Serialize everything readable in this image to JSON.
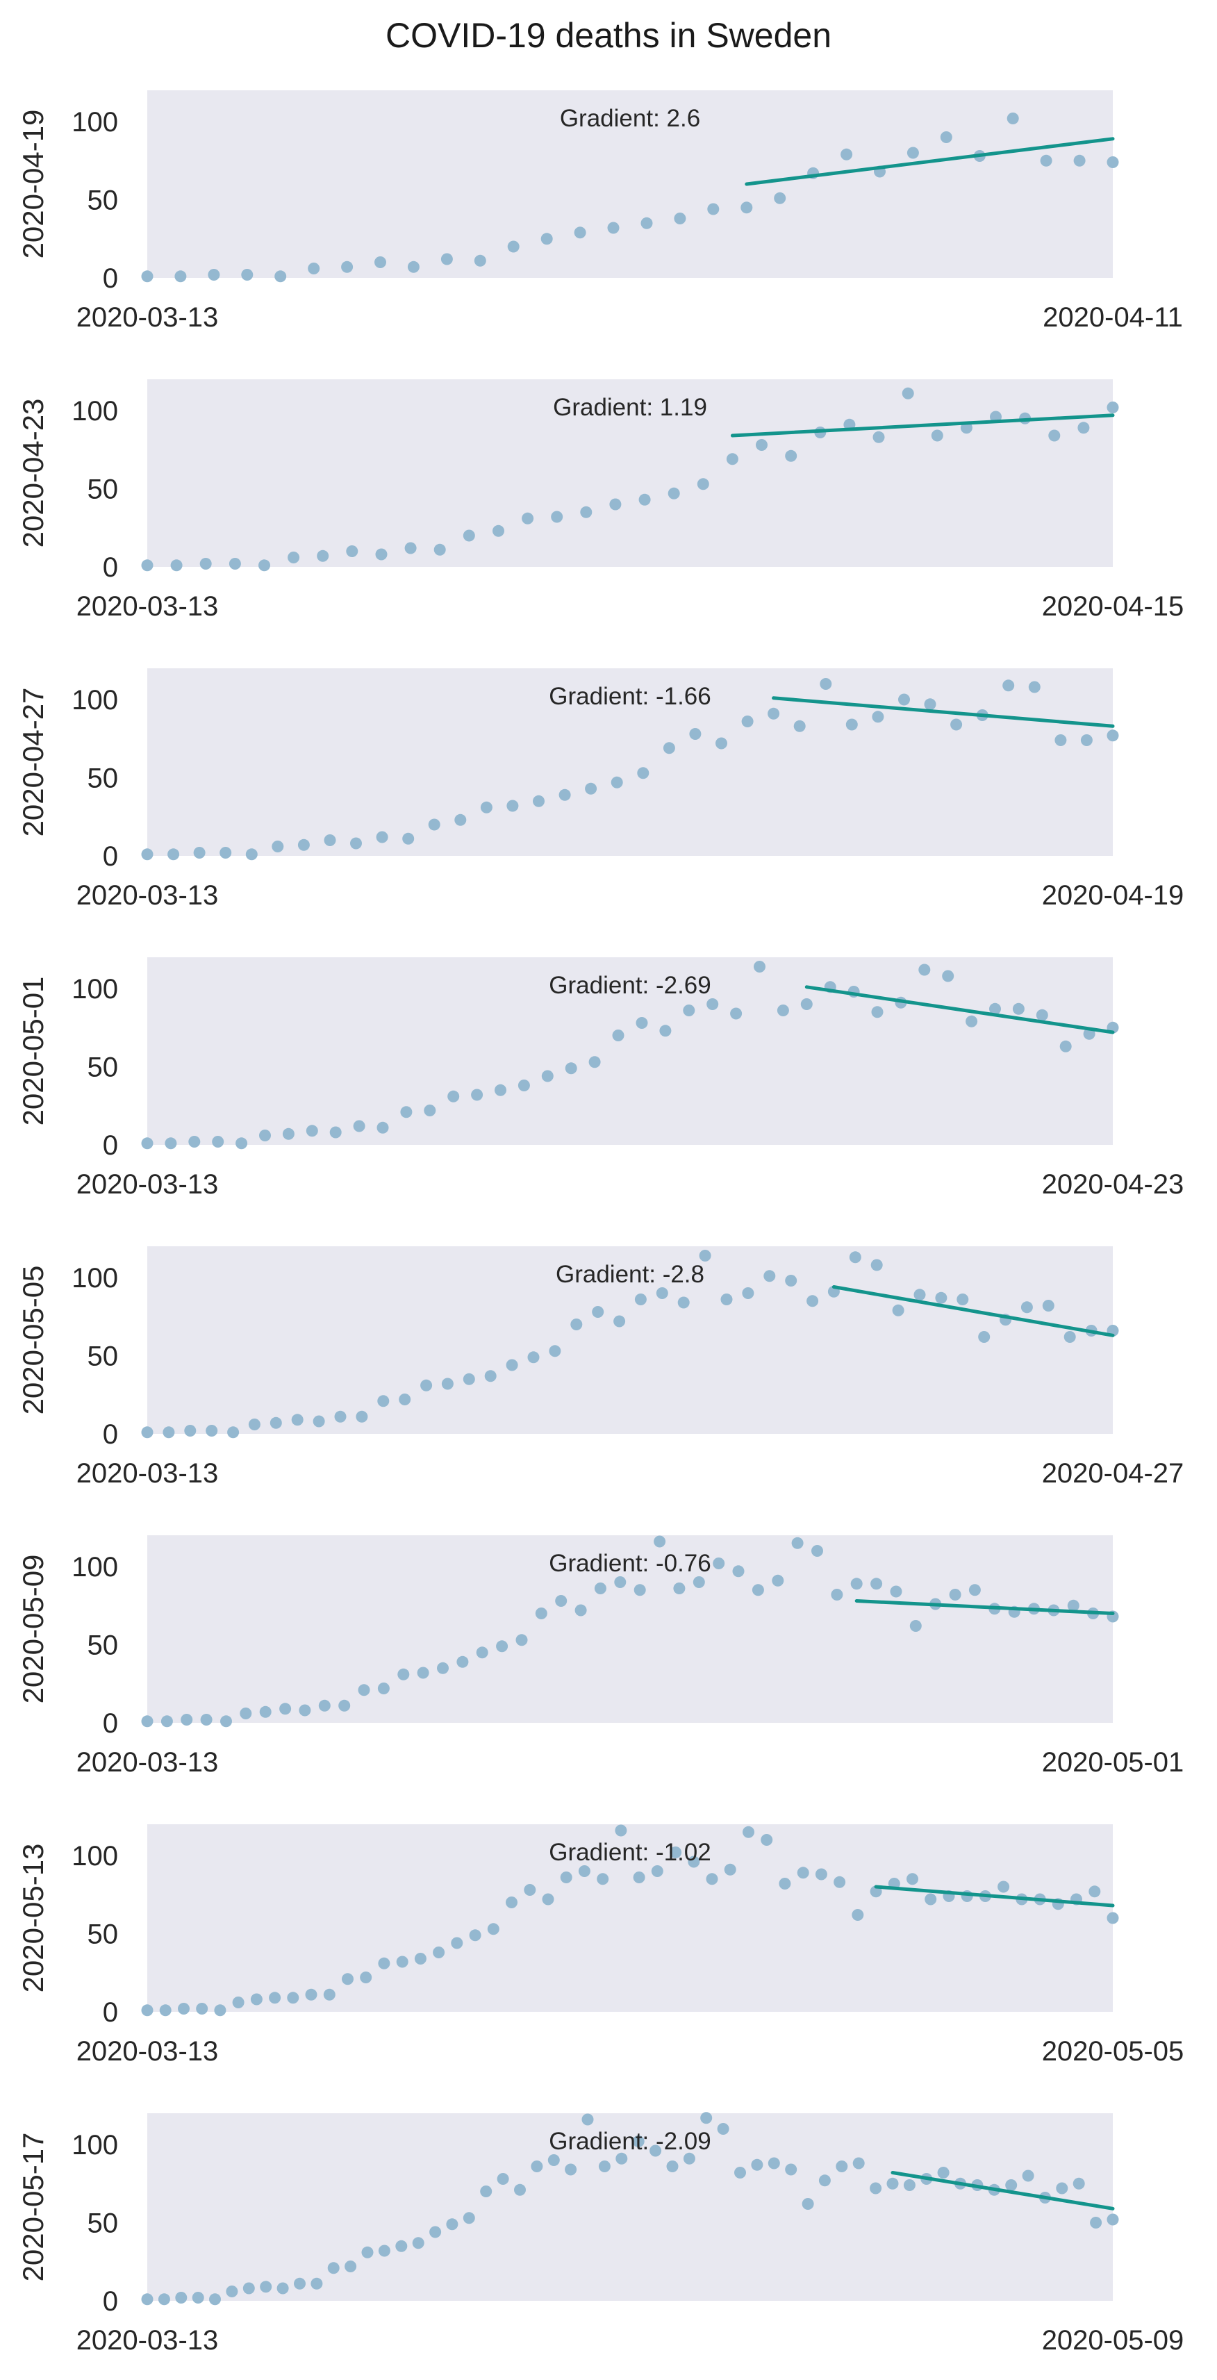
{
  "chart_data": {
    "title": "COVID-19 deaths in Sweden",
    "type": "scatter",
    "colors": {
      "points": "#94b8d0",
      "trend": "#13948c",
      "panel": "#e8e8f0"
    },
    "grid": false,
    "y_ticks": [
      0,
      50,
      100
    ],
    "ylim": [
      0,
      120
    ],
    "panels": [
      {
        "ylabel": "2020-04-19",
        "x_start_label": "2020-03-13",
        "x_end_label": "2020-04-11",
        "gradient_label": "Gradient: 2.6",
        "values": [
          1,
          1,
          2,
          2,
          1,
          6,
          7,
          10,
          7,
          12,
          11,
          20,
          25,
          29,
          32,
          35,
          38,
          44,
          45,
          51,
          67,
          79,
          68,
          80,
          90,
          78,
          102,
          75,
          75,
          74
        ],
        "trend": [
          60,
          89
        ],
        "trend_start": 18
      },
      {
        "ylabel": "2020-04-23",
        "x_start_label": "2020-03-13",
        "x_end_label": "2020-04-15",
        "gradient_label": "Gradient: 1.19",
        "values": [
          1,
          1,
          2,
          2,
          1,
          6,
          7,
          10,
          8,
          12,
          11,
          20,
          23,
          31,
          32,
          35,
          40,
          43,
          47,
          53,
          69,
          78,
          71,
          86,
          91,
          83,
          111,
          84,
          89,
          96,
          95,
          84,
          89,
          102
        ],
        "trend": [
          84,
          97
        ],
        "trend_start": 20
      },
      {
        "ylabel": "2020-04-27",
        "x_start_label": "2020-03-13",
        "x_end_label": "2020-04-19",
        "gradient_label": "Gradient: -1.66",
        "values": [
          1,
          1,
          2,
          2,
          1,
          6,
          7,
          10,
          8,
          12,
          11,
          20,
          23,
          31,
          32,
          35,
          39,
          43,
          47,
          53,
          69,
          78,
          72,
          86,
          91,
          83,
          110,
          84,
          89,
          100,
          97,
          84,
          90,
          109,
          108,
          74,
          74,
          77
        ],
        "trend": [
          101,
          83
        ],
        "trend_start": 24
      },
      {
        "ylabel": "2020-05-01",
        "x_start_label": "2020-03-13",
        "x_end_label": "2020-04-23",
        "gradient_label": "Gradient: -2.69",
        "values": [
          1,
          1,
          2,
          2,
          1,
          6,
          7,
          9,
          8,
          12,
          11,
          21,
          22,
          31,
          32,
          35,
          38,
          44,
          49,
          53,
          70,
          78,
          73,
          86,
          90,
          84,
          114,
          86,
          90,
          101,
          98,
          85,
          91,
          112,
          108,
          79,
          87,
          87,
          83,
          63,
          71,
          75
        ],
        "trend": [
          101,
          72
        ],
        "trend_start": 28
      },
      {
        "ylabel": "2020-05-05",
        "x_start_label": "2020-03-13",
        "x_end_label": "2020-04-27",
        "gradient_label": "Gradient: -2.8",
        "values": [
          1,
          1,
          2,
          2,
          1,
          6,
          7,
          9,
          8,
          11,
          11,
          21,
          22,
          31,
          32,
          35,
          37,
          44,
          49,
          53,
          70,
          78,
          72,
          86,
          90,
          84,
          114,
          86,
          90,
          101,
          98,
          85,
          91,
          113,
          108,
          79,
          89,
          87,
          86,
          62,
          73,
          81,
          82,
          62,
          66,
          66
        ],
        "trend": [
          94,
          63
        ],
        "trend_start": 32
      },
      {
        "ylabel": "2020-05-09",
        "x_start_label": "2020-03-13",
        "x_end_label": "2020-05-01",
        "gradient_label": "Gradient: -0.76",
        "values": [
          1,
          1,
          2,
          2,
          1,
          6,
          7,
          9,
          8,
          11,
          11,
          21,
          22,
          31,
          32,
          35,
          39,
          45,
          49,
          53,
          70,
          78,
          72,
          86,
          90,
          85,
          116,
          86,
          90,
          102,
          97,
          85,
          91,
          115,
          110,
          82,
          89,
          89,
          84,
          62,
          76,
          82,
          85,
          73,
          71,
          73,
          72,
          75,
          70,
          68
        ],
        "trend": [
          78,
          70
        ],
        "trend_start": 36
      },
      {
        "ylabel": "2020-05-13",
        "x_start_label": "2020-03-13",
        "x_end_label": "2020-05-05",
        "gradient_label": "Gradient: -1.02",
        "values": [
          1,
          1,
          2,
          2,
          1,
          6,
          8,
          9,
          9,
          11,
          11,
          21,
          22,
          31,
          32,
          34,
          38,
          44,
          49,
          53,
          70,
          78,
          72,
          86,
          90,
          85,
          116,
          86,
          90,
          102,
          96,
          85,
          91,
          115,
          110,
          82,
          89,
          88,
          83,
          62,
          77,
          82,
          85,
          72,
          74,
          74,
          74,
          80,
          72,
          72,
          69,
          72,
          77,
          60
        ],
        "trend": [
          80,
          68
        ],
        "trend_start": 40
      },
      {
        "ylabel": "2020-05-17",
        "x_start_label": "2020-03-13",
        "x_end_label": "2020-05-09",
        "gradient_label": "Gradient: -2.09",
        "values": [
          1,
          1,
          2,
          2,
          1,
          6,
          8,
          9,
          8,
          11,
          11,
          21,
          22,
          31,
          32,
          35,
          37,
          44,
          49,
          53,
          70,
          78,
          71,
          86,
          90,
          84,
          116,
          86,
          91,
          102,
          96,
          86,
          91,
          117,
          110,
          82,
          87,
          88,
          84,
          62,
          77,
          86,
          88,
          72,
          75,
          74,
          78,
          82,
          75,
          74,
          71,
          74,
          80,
          66,
          72,
          75,
          50,
          52
        ],
        "trend": [
          82,
          59
        ],
        "trend_start": 44
      }
    ]
  }
}
